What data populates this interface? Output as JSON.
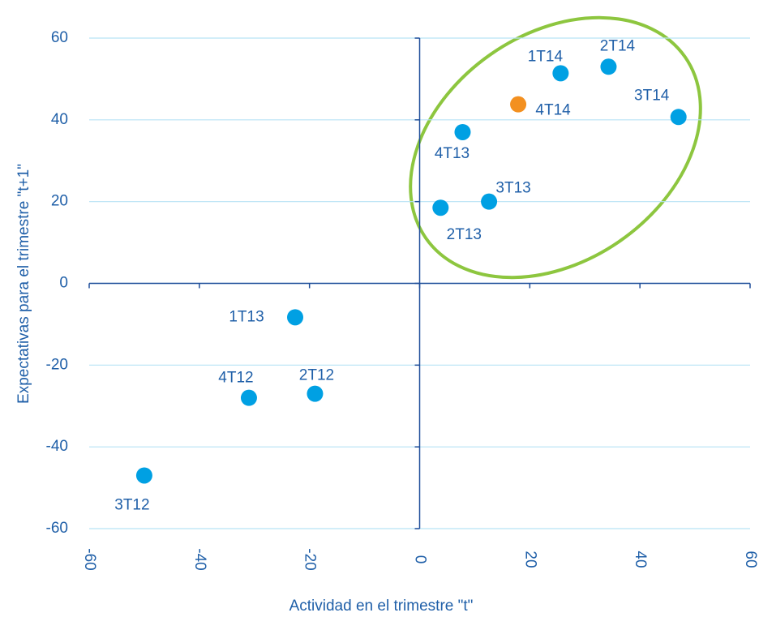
{
  "chart_data": {
    "type": "scatter",
    "x_label": "Actividad en el trimestre \"t\"",
    "y_label": "Expectativas para el trimestre \"t+1\"",
    "xlim": [
      -60,
      60
    ],
    "ylim": [
      -60,
      60
    ],
    "xticks": [
      -60,
      -40,
      -20,
      0,
      20,
      40,
      60
    ],
    "yticks": [
      -60,
      -40,
      -20,
      0,
      20,
      40,
      60
    ],
    "grid": true,
    "series": [
      {
        "color": "#00a0e3",
        "labels": [
          "3T12",
          "4T12",
          "2T12",
          "1T13",
          "2T13",
          "3T13",
          "4T13",
          "1T14",
          "2T14",
          "3T14"
        ],
        "x": [
          -50,
          -31,
          -19,
          -22.6,
          3.8,
          12.6,
          7.8,
          25.6,
          34.3,
          47
        ],
        "values": [
          -47,
          -28,
          -27,
          -8.3,
          18.5,
          20,
          37,
          51.4,
          53,
          40.7
        ]
      },
      {
        "color": "#f39020",
        "labels": [
          "4T14"
        ],
        "x": [
          17.9
        ],
        "values": [
          43.8
        ]
      }
    ]
  }
}
